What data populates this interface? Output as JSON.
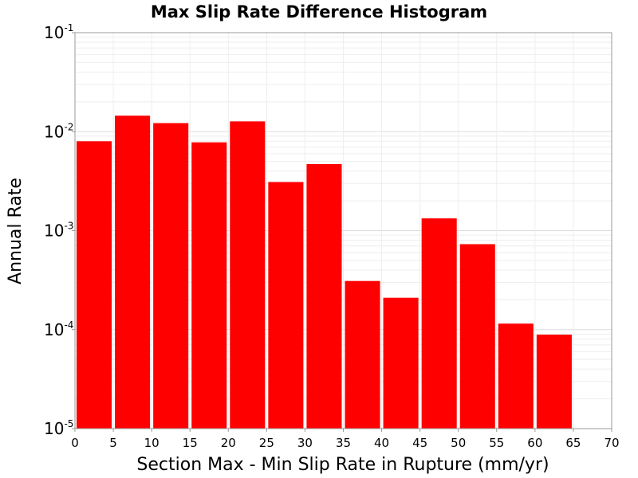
{
  "chart_data": {
    "type": "bar",
    "title": "Max Slip Rate Difference Histogram",
    "xlabel": "Section Max - Min Slip Rate in Rupture (mm/yr)",
    "ylabel": "Annual Rate",
    "xlim": [
      0,
      70
    ],
    "ylim": [
      1e-05,
      0.1
    ],
    "y_scale": "log",
    "x_ticks": [
      "0",
      "5",
      "10",
      "15",
      "20",
      "25",
      "30",
      "35",
      "40",
      "45",
      "50",
      "55",
      "60",
      "65",
      "70"
    ],
    "y_ticks": [
      {
        "base": "10",
        "exp": "-1",
        "value": 0.1
      },
      {
        "base": "10",
        "exp": "-2",
        "value": 0.01
      },
      {
        "base": "10",
        "exp": "-3",
        "value": 0.001
      },
      {
        "base": "10",
        "exp": "-4",
        "value": 0.0001
      },
      {
        "base": "10",
        "exp": "-5",
        "value": 1e-05
      }
    ],
    "grid": true,
    "bar_color": "#ff0000",
    "bars": [
      {
        "x0": 0,
        "x1": 5,
        "value": 0.008
      },
      {
        "x0": 5,
        "x1": 10,
        "value": 0.0145
      },
      {
        "x0": 10,
        "x1": 15,
        "value": 0.0122
      },
      {
        "x0": 15,
        "x1": 20,
        "value": 0.0078
      },
      {
        "x0": 20,
        "x1": 25,
        "value": 0.0127
      },
      {
        "x0": 25,
        "x1": 30,
        "value": 0.0031
      },
      {
        "x0": 30,
        "x1": 35,
        "value": 0.0047
      },
      {
        "x0": 35,
        "x1": 40,
        "value": 0.00031
      },
      {
        "x0": 40,
        "x1": 45,
        "value": 0.00021
      },
      {
        "x0": 45,
        "x1": 50,
        "value": 0.00133
      },
      {
        "x0": 50,
        "x1": 55,
        "value": 0.00073
      },
      {
        "x0": 55,
        "x1": 60,
        "value": 0.000115
      },
      {
        "x0": 60,
        "x1": 65,
        "value": 8.9e-05
      }
    ]
  }
}
